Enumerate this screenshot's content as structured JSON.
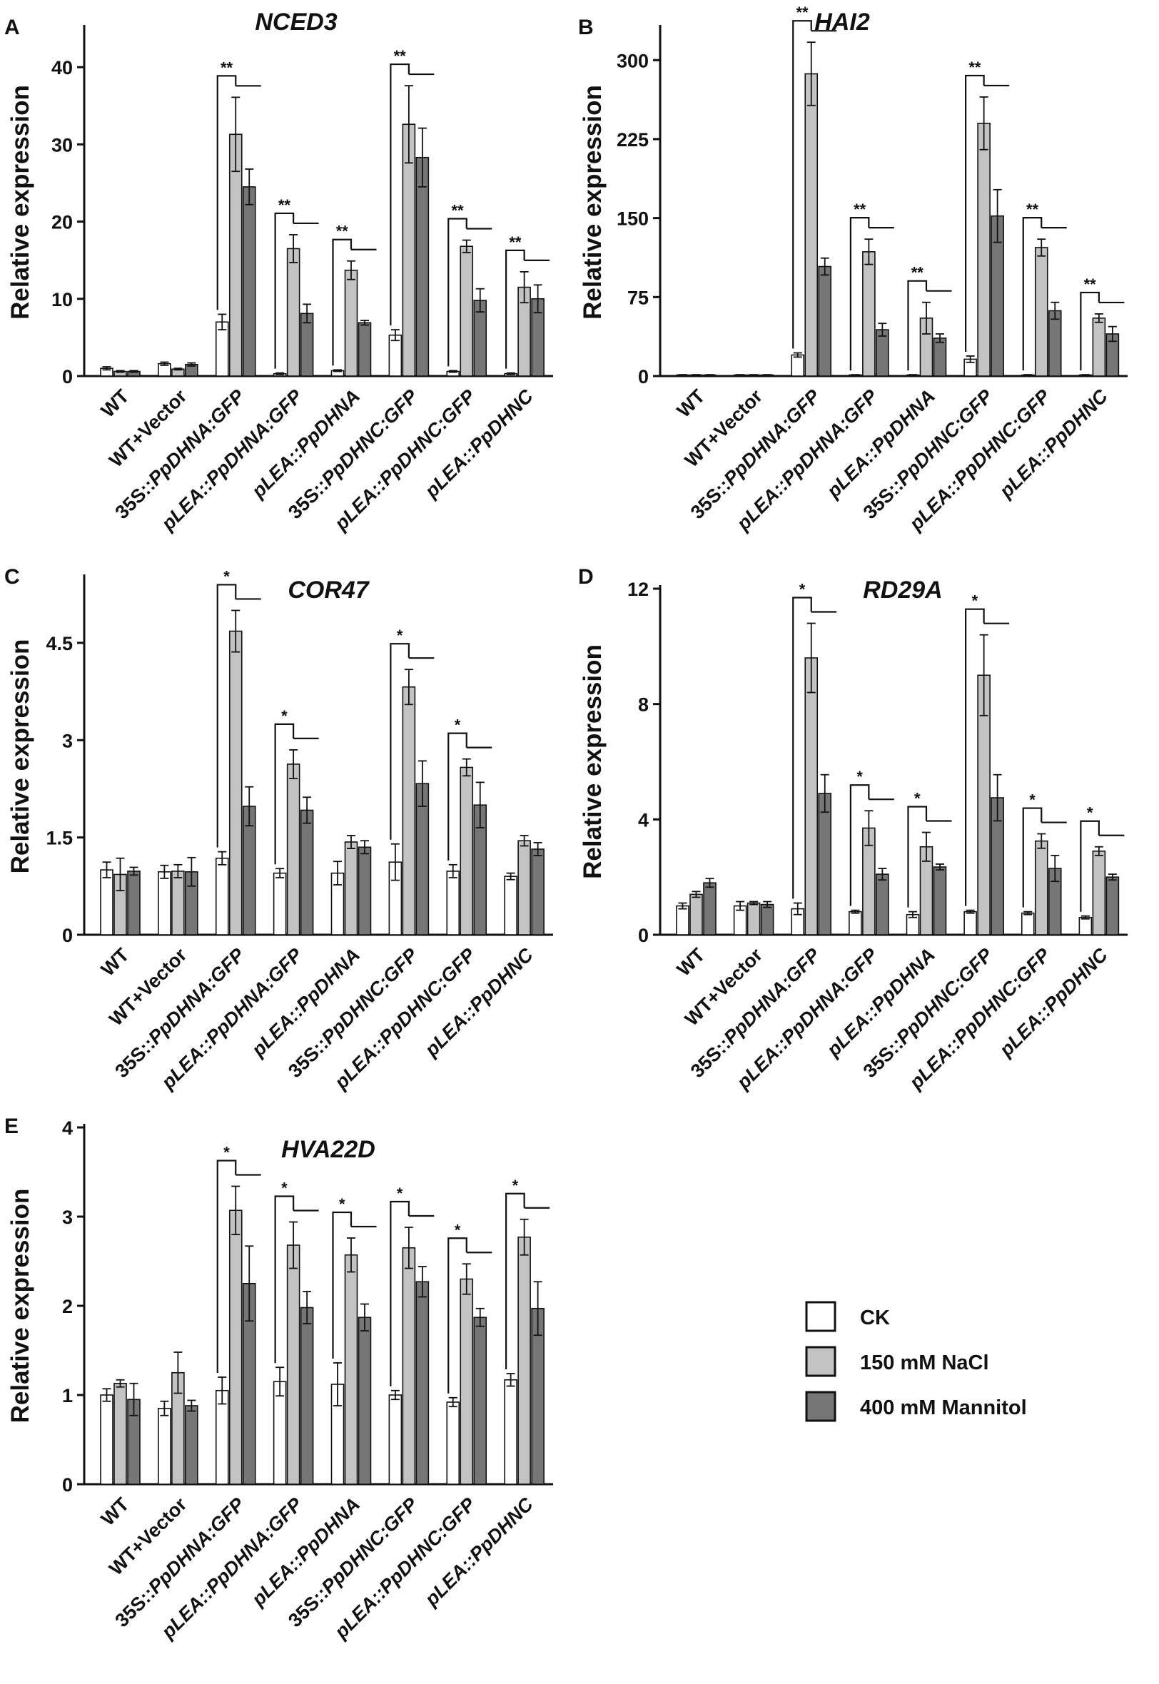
{
  "legend": {
    "entries": [
      {
        "label": "CK",
        "color": "#ffffff"
      },
      {
        "label": "150 mM NaCl",
        "color": "#c3c3c3"
      },
      {
        "label": "400 mM Mannitol",
        "color": "#767676"
      }
    ]
  },
  "chart_data": [
    {
      "panel": "A",
      "type": "bar",
      "title": "NCED3",
      "xlabel": "",
      "ylabel": "Relative expression",
      "ylim": [
        0,
        45
      ],
      "yticks": [
        "0",
        "10",
        "20",
        "30",
        "40"
      ],
      "ytick_values": [
        0,
        10,
        20,
        30,
        40
      ],
      "categories": [
        "WT",
        "WT+Vector",
        "35S::PpDHNA:GFP",
        "pLEA::PpDHNA:GFP",
        "pLEA::PpDHNA",
        "35S::PpDHNC:GFP",
        "pLEA::PpDHNC:GFP",
        "pLEA::PpDHNC"
      ],
      "series": [
        {
          "name": "CK",
          "values": [
            1.0,
            1.6,
            7.0,
            0.3,
            0.7,
            5.3,
            0.6,
            0.3
          ],
          "errors": [
            0.2,
            0.2,
            1.0,
            0.1,
            0.1,
            0.7,
            0.1,
            0.1
          ]
        },
        {
          "name": "150 mM NaCl",
          "values": [
            0.6,
            0.9,
            31.3,
            16.5,
            13.7,
            32.6,
            16.8,
            11.5
          ],
          "errors": [
            0.1,
            0.1,
            4.8,
            1.8,
            1.2,
            5.0,
            0.8,
            2.0
          ]
        },
        {
          "name": "400 mM Mannitol",
          "values": [
            0.6,
            1.5,
            24.5,
            8.1,
            6.9,
            28.3,
            9.8,
            10.0
          ],
          "errors": [
            0.1,
            0.2,
            2.3,
            1.2,
            0.3,
            3.8,
            1.5,
            1.8
          ]
        }
      ],
      "significance": [
        "",
        "",
        "**",
        "**",
        "**",
        "**",
        "**",
        "**"
      ]
    },
    {
      "panel": "B",
      "type": "bar",
      "title": "HAI2",
      "xlabel": "",
      "ylabel": "Relative expression",
      "ylim": [
        0,
        330
      ],
      "yticks": [
        "0",
        "75",
        "150",
        "225",
        "300"
      ],
      "ytick_values": [
        0,
        75,
        150,
        225,
        300
      ],
      "categories": [
        "WT",
        "WT+Vector",
        "35S::PpDHNA:GFP",
        "pLEA::PpDHNA:GFP",
        "pLEA::PpDHNA",
        "35S::PpDHNC:GFP",
        "pLEA::PpDHNC:GFP",
        "pLEA::PpDHNC"
      ],
      "series": [
        {
          "name": "CK",
          "values": [
            1,
            1,
            20,
            1,
            1,
            16,
            1,
            1
          ],
          "errors": [
            0.3,
            0.3,
            2,
            0.3,
            0.3,
            3,
            0.3,
            0.3
          ]
        },
        {
          "name": "150 mM NaCl",
          "values": [
            1,
            1,
            287,
            118,
            55,
            240,
            122,
            55
          ],
          "errors": [
            0.3,
            0.3,
            30,
            12,
            15,
            25,
            8,
            4
          ]
        },
        {
          "name": "400 mM Mannitol",
          "values": [
            1,
            1,
            104,
            44,
            36,
            152,
            62,
            40
          ],
          "errors": [
            0.3,
            0.3,
            8,
            6,
            4,
            25,
            8,
            7
          ]
        }
      ],
      "significance": [
        "",
        "",
        "**",
        "**",
        "**",
        "**",
        "**",
        "**"
      ]
    },
    {
      "panel": "C",
      "type": "bar",
      "title": "COR47",
      "xlabel": "",
      "ylabel": "Relative expression",
      "ylim": [
        0,
        5.5
      ],
      "yticks": [
        "0",
        "1.5",
        "3",
        "4.5"
      ],
      "ytick_values": [
        0,
        1.5,
        3,
        4.5
      ],
      "categories": [
        "WT",
        "WT+Vector",
        "35S::PpDHNA:GFP",
        "pLEA::PpDHNA:GFP",
        "pLEA::PpDHNA",
        "35S::PpDHNC:GFP",
        "pLEA::PpDHNC:GFP",
        "pLEA::PpDHNC"
      ],
      "series": [
        {
          "name": "CK",
          "values": [
            1.0,
            0.97,
            1.18,
            0.95,
            0.95,
            1.12,
            0.98,
            0.9
          ],
          "errors": [
            0.12,
            0.1,
            0.1,
            0.07,
            0.18,
            0.28,
            0.1,
            0.05
          ]
        },
        {
          "name": "150 mM NaCl",
          "values": [
            0.93,
            0.98,
            4.68,
            2.63,
            1.43,
            3.82,
            2.58,
            1.45
          ],
          "errors": [
            0.25,
            0.1,
            0.32,
            0.22,
            0.1,
            0.27,
            0.13,
            0.08
          ]
        },
        {
          "name": "400 mM Mannitol",
          "values": [
            0.98,
            0.97,
            1.98,
            1.92,
            1.35,
            2.33,
            2.0,
            1.32
          ],
          "errors": [
            0.06,
            0.22,
            0.3,
            0.2,
            0.1,
            0.35,
            0.35,
            0.1
          ]
        }
      ],
      "significance": [
        "",
        "",
        "*",
        "*",
        "",
        "*",
        "*",
        ""
      ]
    },
    {
      "panel": "D",
      "type": "bar",
      "title": "RD29A",
      "xlabel": "",
      "ylabel": "Relative expression",
      "ylim": [
        0,
        12
      ],
      "yticks": [
        "0",
        "4",
        "8",
        "12"
      ],
      "ytick_values": [
        0,
        4,
        8,
        12
      ],
      "categories": [
        "WT",
        "WT+Vector",
        "35S::PpDHNA:GFP",
        "pLEA::PpDHNA:GFP",
        "pLEA::PpDHNA",
        "35S::PpDHNC:GFP",
        "pLEA::PpDHNC:GFP",
        "pLEA::PpDHNC"
      ],
      "series": [
        {
          "name": "CK",
          "values": [
            1.0,
            1.0,
            0.9,
            0.8,
            0.7,
            0.8,
            0.75,
            0.6
          ],
          "errors": [
            0.1,
            0.15,
            0.2,
            0.05,
            0.1,
            0.05,
            0.05,
            0.05
          ]
        },
        {
          "name": "150 mM NaCl",
          "values": [
            1.4,
            1.1,
            9.6,
            3.7,
            3.05,
            9.0,
            3.25,
            2.9
          ],
          "errors": [
            0.1,
            0.05,
            1.2,
            0.6,
            0.5,
            1.4,
            0.25,
            0.15
          ]
        },
        {
          "name": "400 mM Mannitol",
          "values": [
            1.8,
            1.05,
            4.9,
            2.1,
            2.35,
            4.75,
            2.3,
            2.0
          ],
          "errors": [
            0.15,
            0.1,
            0.65,
            0.2,
            0.1,
            0.8,
            0.45,
            0.1
          ]
        }
      ],
      "significance": [
        "",
        "",
        "*",
        "*",
        "*",
        "*",
        "*",
        "*"
      ]
    },
    {
      "panel": "E",
      "type": "bar",
      "title": "HVA22D",
      "xlabel": "",
      "ylabel": "Relative expression",
      "ylim": [
        0,
        4
      ],
      "yticks": [
        "0",
        "1",
        "2",
        "3",
        "4"
      ],
      "ytick_values": [
        0,
        1,
        2,
        3,
        4
      ],
      "categories": [
        "WT",
        "WT+Vector",
        "35S::PpDHNA:GFP",
        "pLEA::PpDHNA:GFP",
        "pLEA::PpDHNA",
        "35S::PpDHNC:GFP",
        "pLEA::PpDHNC:GFP",
        "pLEA::PpDHNC"
      ],
      "series": [
        {
          "name": "CK",
          "values": [
            1.0,
            0.85,
            1.05,
            1.15,
            1.12,
            1.0,
            0.92,
            1.17
          ],
          "errors": [
            0.07,
            0.08,
            0.15,
            0.16,
            0.24,
            0.05,
            0.05,
            0.07
          ]
        },
        {
          "name": "150 mM NaCl",
          "values": [
            1.13,
            1.25,
            3.07,
            2.68,
            2.57,
            2.65,
            2.3,
            2.77
          ],
          "errors": [
            0.04,
            0.23,
            0.27,
            0.26,
            0.19,
            0.23,
            0.17,
            0.2
          ]
        },
        {
          "name": "400 mM Mannitol",
          "values": [
            0.95,
            0.88,
            2.25,
            1.98,
            1.87,
            2.27,
            1.87,
            1.97
          ],
          "errors": [
            0.18,
            0.06,
            0.42,
            0.18,
            0.15,
            0.17,
            0.1,
            0.3
          ]
        }
      ],
      "significance": [
        "",
        "",
        "*",
        "*",
        "*",
        "*",
        "*",
        "*"
      ]
    }
  ]
}
